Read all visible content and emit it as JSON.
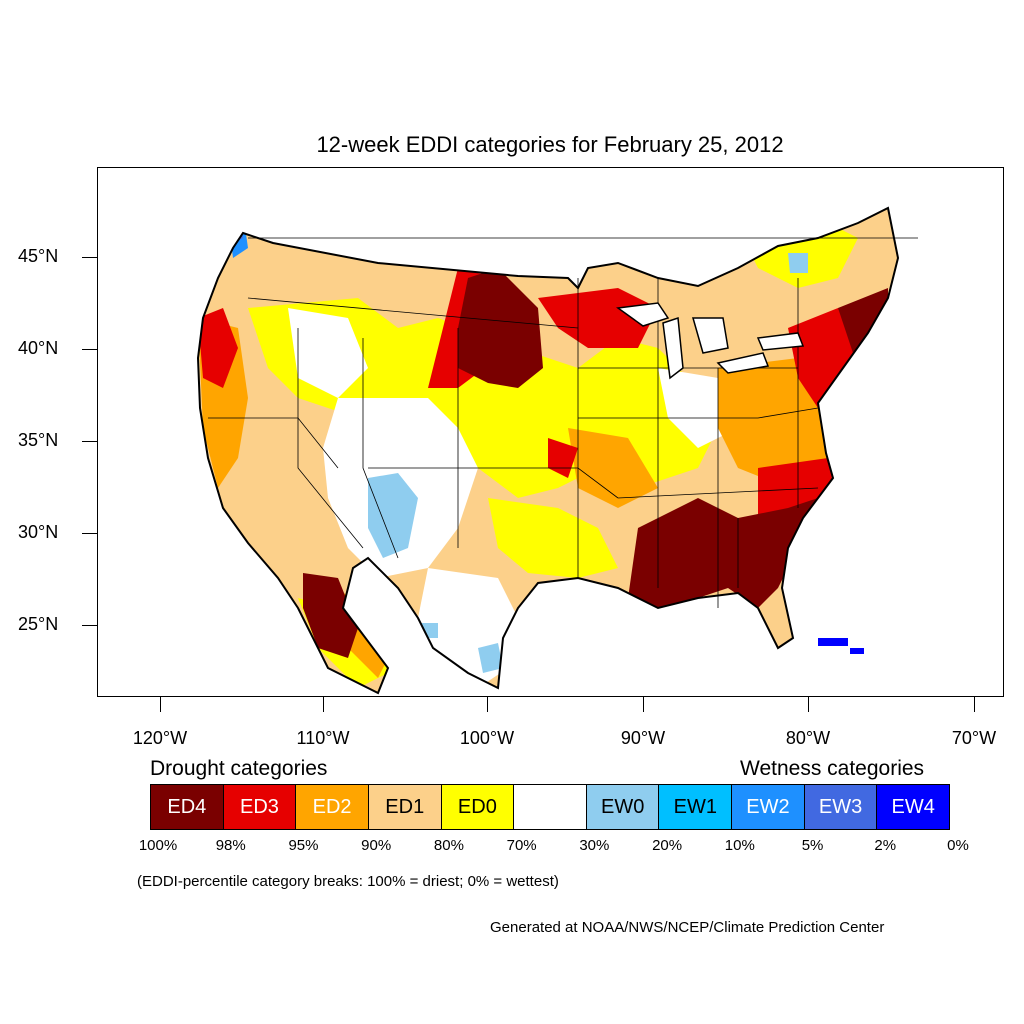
{
  "title": "12-week EDDI categories for February 25, 2012",
  "axes": {
    "lat_labels": [
      "45°N",
      "40°N",
      "35°N",
      "30°N",
      "25°N"
    ],
    "lon_labels": [
      "120°W",
      "110°W",
      "100°W",
      "90°W",
      "80°W",
      "70°W"
    ]
  },
  "legend": {
    "drought_heading": "Drought categories",
    "wetness_heading": "Wetness categories",
    "categories": [
      {
        "label": "ED4",
        "color": "#7a0000",
        "text_color": "#ffffff"
      },
      {
        "label": "ED3",
        "color": "#e60000",
        "text_color": "#ffffff"
      },
      {
        "label": "ED2",
        "color": "#ffa500",
        "text_color": "#ffffff"
      },
      {
        "label": "ED1",
        "color": "#fcd08a",
        "text_color": "#000000"
      },
      {
        "label": "ED0",
        "color": "#ffff00",
        "text_color": "#000000"
      },
      {
        "label": "",
        "color": "#ffffff",
        "text_color": "#000000"
      },
      {
        "label": "EW0",
        "color": "#8fcdef",
        "text_color": "#000000"
      },
      {
        "label": "EW1",
        "color": "#00bfff",
        "text_color": "#000000"
      },
      {
        "label": "EW2",
        "color": "#1e90ff",
        "text_color": "#ffffff"
      },
      {
        "label": "EW3",
        "color": "#4169e1",
        "text_color": "#ffffff"
      },
      {
        "label": "EW4",
        "color": "#0000ff",
        "text_color": "#ffffff"
      }
    ],
    "breaks": [
      "100%",
      "98%",
      "95%",
      "90%",
      "80%",
      "70%",
      "30%",
      "20%",
      "10%",
      "5%",
      "2%",
      "0%"
    ]
  },
  "note": "(EDDI-percentile category breaks: 100% = driest; 0% = wettest)",
  "credit": "Generated at NOAA/NWS/NCEP/Climate Prediction Center"
}
